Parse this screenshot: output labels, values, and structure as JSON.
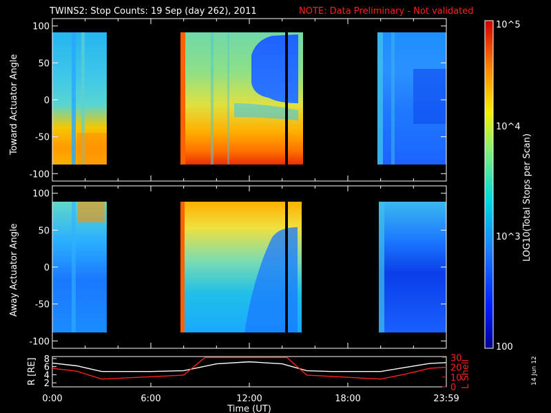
{
  "title": "TWINS2: Stop Counts: 19 Sep (day 262), 2011",
  "note": "NOTE: Data Preliminary - Not validated",
  "date_stamp": "14 Jun 12",
  "colors": {
    "note": "#ff2020",
    "axes": "#ffffff",
    "background": "#000000",
    "ephem_r": "#ffffff",
    "ephem_l": "#ff2020"
  },
  "colorbar": {
    "label": "LOG10(Total Stops per Scan)",
    "ticks": [
      "10^5",
      "10^4",
      "10^3",
      "100"
    ]
  },
  "chart_data": [
    {
      "type": "heatmap",
      "ylabel": "Toward Actuator Angle",
      "yticks": [
        "100",
        "50",
        "0",
        "-50",
        "-100"
      ],
      "ylim": [
        -110,
        110
      ],
      "x_ticks": [
        "0:00",
        "6:00",
        "12:00",
        "18:00",
        "23:59"
      ],
      "data_intervals_hours": [
        [
          0.0,
          3.2
        ],
        [
          7.8,
          15.6
        ],
        [
          20.0,
          24.0
        ]
      ],
      "color_scale": "log 100 to 100000 (blue to red)"
    },
    {
      "type": "heatmap",
      "ylabel": "Away Actuator Angle",
      "yticks": [
        "100",
        "50",
        "0",
        "-50",
        "-100"
      ],
      "ylim": [
        -110,
        110
      ],
      "x_ticks": [
        "0:00",
        "6:00",
        "12:00",
        "18:00",
        "23:59"
      ],
      "data_intervals_hours": [
        [
          0.0,
          3.2
        ],
        [
          7.8,
          15.6
        ],
        [
          20.0,
          24.0
        ]
      ],
      "color_scale": "log 100 to 100000 (blue to red)"
    },
    {
      "type": "line",
      "xlabel": "Time (UT)",
      "ylabel_left": "R [RE]",
      "ylabel_right": "L Shell",
      "yticks_left": [
        "8",
        "6",
        "4",
        "2"
      ],
      "yticks_right": [
        "30",
        "20",
        "10",
        "0"
      ],
      "x_ticks": [
        "0:00",
        "6:00",
        "12:00",
        "18:00",
        "23:59"
      ],
      "series": [
        {
          "name": "R [RE]",
          "color": "#ffffff",
          "x": [
            0,
            1.5,
            3,
            6,
            8,
            10,
            12,
            14,
            15.5,
            17,
            20,
            21.5,
            23,
            24
          ],
          "y": [
            6.9,
            6.2,
            4.8,
            4.8,
            5.0,
            6.7,
            7.2,
            6.7,
            5.0,
            4.8,
            4.8,
            5.8,
            6.8,
            7.0
          ]
        },
        {
          "name": "L Shell",
          "color": "#ff2020",
          "x": [
            0,
            1.5,
            3,
            8,
            9.3,
            14.3,
            15.5,
            20,
            21.5,
            23,
            24
          ],
          "y": [
            19,
            16,
            8,
            12,
            30,
            30,
            12,
            8,
            13,
            19,
            20
          ]
        }
      ]
    }
  ]
}
